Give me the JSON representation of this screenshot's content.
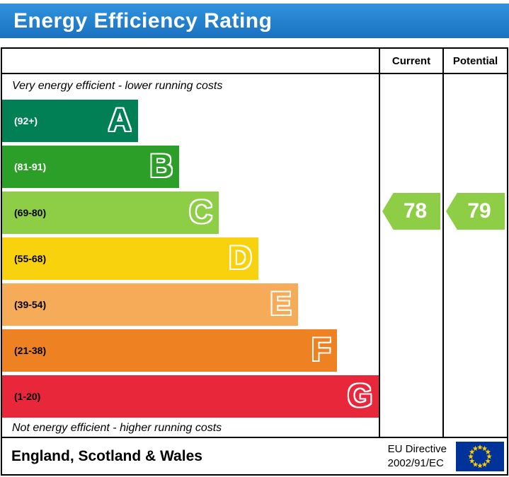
{
  "title": "Energy Efficiency Rating",
  "header": {
    "current_label": "Current",
    "potential_label": "Potential"
  },
  "top_note": "Very energy efficient - lower running costs",
  "bottom_note": "Not energy efficient - higher running costs",
  "footer": {
    "region": "England, Scotland & Wales",
    "directive_line1": "EU Directive",
    "directive_line2": "2002/91/EC"
  },
  "colors": {
    "title_bar_top": "#3093de",
    "title_bar_bottom": "#1b71c0",
    "border": "#000000",
    "arrow_green": "#8dce46",
    "eu_flag_blue": "#003399",
    "eu_flag_star": "#ffcc00"
  },
  "chart_data": {
    "type": "bar",
    "orientation": "horizontal",
    "title": "Energy Efficiency Rating",
    "bands": [
      {
        "letter": "A",
        "range_label": "(92+)",
        "min": 92,
        "max": 100,
        "color": "#008054",
        "width_pct": 36,
        "range_label_color": "#ffffff"
      },
      {
        "letter": "B",
        "range_label": "(81-91)",
        "min": 81,
        "max": 91,
        "color": "#2c9f29",
        "width_pct": 47,
        "range_label_color": "#ffffff"
      },
      {
        "letter": "C",
        "range_label": "(69-80)",
        "min": 69,
        "max": 80,
        "color": "#8dce46",
        "width_pct": 57.5,
        "range_label_color": "#000000"
      },
      {
        "letter": "D",
        "range_label": "(55-68)",
        "min": 55,
        "max": 68,
        "color": "#f7d20d",
        "width_pct": 68,
        "range_label_color": "#000000"
      },
      {
        "letter": "E",
        "range_label": "(39-54)",
        "min": 39,
        "max": 54,
        "color": "#f5ab57",
        "width_pct": 78.5,
        "range_label_color": "#000000"
      },
      {
        "letter": "F",
        "range_label": "(21-38)",
        "min": 21,
        "max": 38,
        "color": "#ee8122",
        "width_pct": 89,
        "range_label_color": "#000000"
      },
      {
        "letter": "G",
        "range_label": "(1-20)",
        "min": 1,
        "max": 20,
        "color": "#e9273b",
        "width_pct": 100,
        "range_label_color": "#000000"
      }
    ],
    "current": {
      "value": 78,
      "band": "C",
      "color": "#8dce46"
    },
    "potential": {
      "value": 79,
      "band": "C",
      "color": "#8dce46"
    }
  }
}
